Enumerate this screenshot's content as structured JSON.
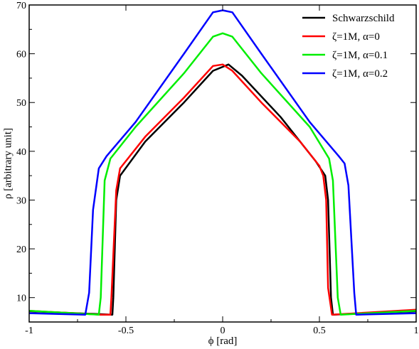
{
  "chart_data": {
    "type": "line",
    "title": "",
    "xlabel": "ϕ [rad]",
    "ylabel": "ρ [arbitrary unit]",
    "xlim": [
      -1,
      1
    ],
    "ylim": [
      5,
      70
    ],
    "xticks": [
      -1,
      -0.5,
      0,
      0.5,
      1
    ],
    "xtick_labels": [
      "-1",
      "-0.5",
      "0",
      "0.5",
      "1"
    ],
    "yticks": [
      10,
      20,
      30,
      40,
      50,
      60,
      70
    ],
    "ytick_labels": [
      "10",
      "20",
      "30",
      "40",
      "50",
      "60",
      "70"
    ],
    "grid": false,
    "legend_position": "top-right",
    "series": [
      {
        "name": "Schwarzschild",
        "color": "#000000",
        "points": [
          [
            -1,
            7.2
          ],
          [
            -0.57,
            6.5
          ],
          [
            -0.565,
            10
          ],
          [
            -0.55,
            30
          ],
          [
            -0.53,
            35
          ],
          [
            -0.4,
            42
          ],
          [
            -0.2,
            50
          ],
          [
            -0.05,
            56.5
          ],
          [
            0.03,
            57.8
          ],
          [
            0.1,
            55.5
          ],
          [
            0.3,
            47
          ],
          [
            0.48,
            38
          ],
          [
            0.53,
            35
          ],
          [
            0.545,
            30
          ],
          [
            0.56,
            10
          ],
          [
            0.57,
            6.5
          ],
          [
            1,
            7.2
          ]
        ]
      },
      {
        "name": "ζ=1M,  α=0",
        "color": "#ff0000",
        "points": [
          [
            -1,
            7.3
          ],
          [
            -0.63,
            6.5
          ],
          [
            -0.58,
            6.5
          ],
          [
            -0.575,
            10
          ],
          [
            -0.55,
            32
          ],
          [
            -0.53,
            36.5
          ],
          [
            -0.4,
            43
          ],
          [
            -0.2,
            51
          ],
          [
            -0.05,
            57.5
          ],
          [
            0,
            57.8
          ],
          [
            0.05,
            56.5
          ],
          [
            0.2,
            50
          ],
          [
            0.4,
            42
          ],
          [
            0.5,
            37
          ],
          [
            0.52,
            35
          ],
          [
            0.535,
            30
          ],
          [
            0.545,
            12
          ],
          [
            0.565,
            6.5
          ],
          [
            1,
            7.5
          ]
        ]
      },
      {
        "name": "ζ=1M,  α=0.1",
        "color": "#00ee00",
        "points": [
          [
            -1,
            7.3
          ],
          [
            -0.64,
            6.5
          ],
          [
            -0.63,
            10
          ],
          [
            -0.61,
            34
          ],
          [
            -0.58,
            38.5
          ],
          [
            -0.45,
            45
          ],
          [
            -0.2,
            56
          ],
          [
            -0.05,
            63.5
          ],
          [
            0,
            64.2
          ],
          [
            0.05,
            63.5
          ],
          [
            0.2,
            56
          ],
          [
            0.45,
            45
          ],
          [
            0.55,
            38.5
          ],
          [
            0.57,
            34
          ],
          [
            0.595,
            10
          ],
          [
            0.61,
            6.5
          ],
          [
            1,
            7.3
          ]
        ]
      },
      {
        "name": "ζ=1M,  α=0.2",
        "color": "#0000ff",
        "points": [
          [
            -1,
            6.8
          ],
          [
            -0.71,
            6.5
          ],
          [
            -0.69,
            11
          ],
          [
            -0.67,
            28
          ],
          [
            -0.64,
            36.5
          ],
          [
            -0.6,
            39
          ],
          [
            -0.45,
            46
          ],
          [
            -0.2,
            60
          ],
          [
            -0.05,
            68.5
          ],
          [
            0,
            68.9
          ],
          [
            0.05,
            68.5
          ],
          [
            0.2,
            60
          ],
          [
            0.45,
            46
          ],
          [
            0.6,
            39
          ],
          [
            0.63,
            37.5
          ],
          [
            0.65,
            33
          ],
          [
            0.68,
            11
          ],
          [
            0.69,
            6.5
          ],
          [
            1,
            6.8
          ]
        ]
      }
    ]
  }
}
